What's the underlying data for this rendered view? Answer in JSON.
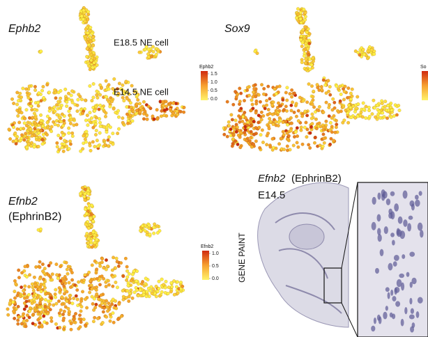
{
  "panels": [
    {
      "gene": "Ephb2",
      "labels": [
        "E18.5 NE cell",
        "E14.5 NE cell"
      ],
      "colorbar": {
        "title": "Ephb2",
        "ticks": [
          {
            "value": 1.5,
            "label": "1.5"
          },
          {
            "value": 1.0,
            "label": "1.0"
          },
          {
            "value": 0.5,
            "label": "0.5"
          },
          {
            "value": 0.0,
            "label": "0.0"
          }
        ]
      }
    },
    {
      "gene": "Sox9",
      "colorbar": {
        "title": "So"
      }
    },
    {
      "gene": "Efnb2",
      "subtitle": "(EphrinB2)",
      "colorbar": {
        "title": "Efnb2",
        "ticks": [
          {
            "value": 1.0,
            "label": "1.0"
          },
          {
            "value": 0.5,
            "label": "0.5"
          },
          {
            "value": 0.0,
            "label": "0.0"
          }
        ]
      }
    }
  ],
  "genepaint": {
    "gene": "Efnb2",
    "protein": "(EphrinB2)",
    "stage": "E14.5",
    "side_label": "GENE PAINT"
  }
}
